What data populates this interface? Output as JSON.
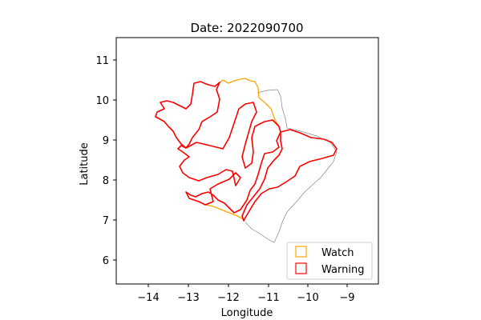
{
  "title": "Date: 2022090700",
  "xlabel": "Longitude",
  "ylabel": "Latitude",
  "x_ticks": [
    "−14",
    "−13",
    "−12",
    "−11",
    "−10",
    "−9"
  ],
  "y_ticks": [
    "6",
    "7",
    "8",
    "9",
    "10",
    "11"
  ],
  "legend": [
    {
      "label": "Watch",
      "color": "#ffa500"
    },
    {
      "label": "Warning",
      "color": "#ff0000"
    }
  ],
  "colors": {
    "outline": "#888888",
    "watch": "#ffa500",
    "warning": "#ff0000"
  }
}
